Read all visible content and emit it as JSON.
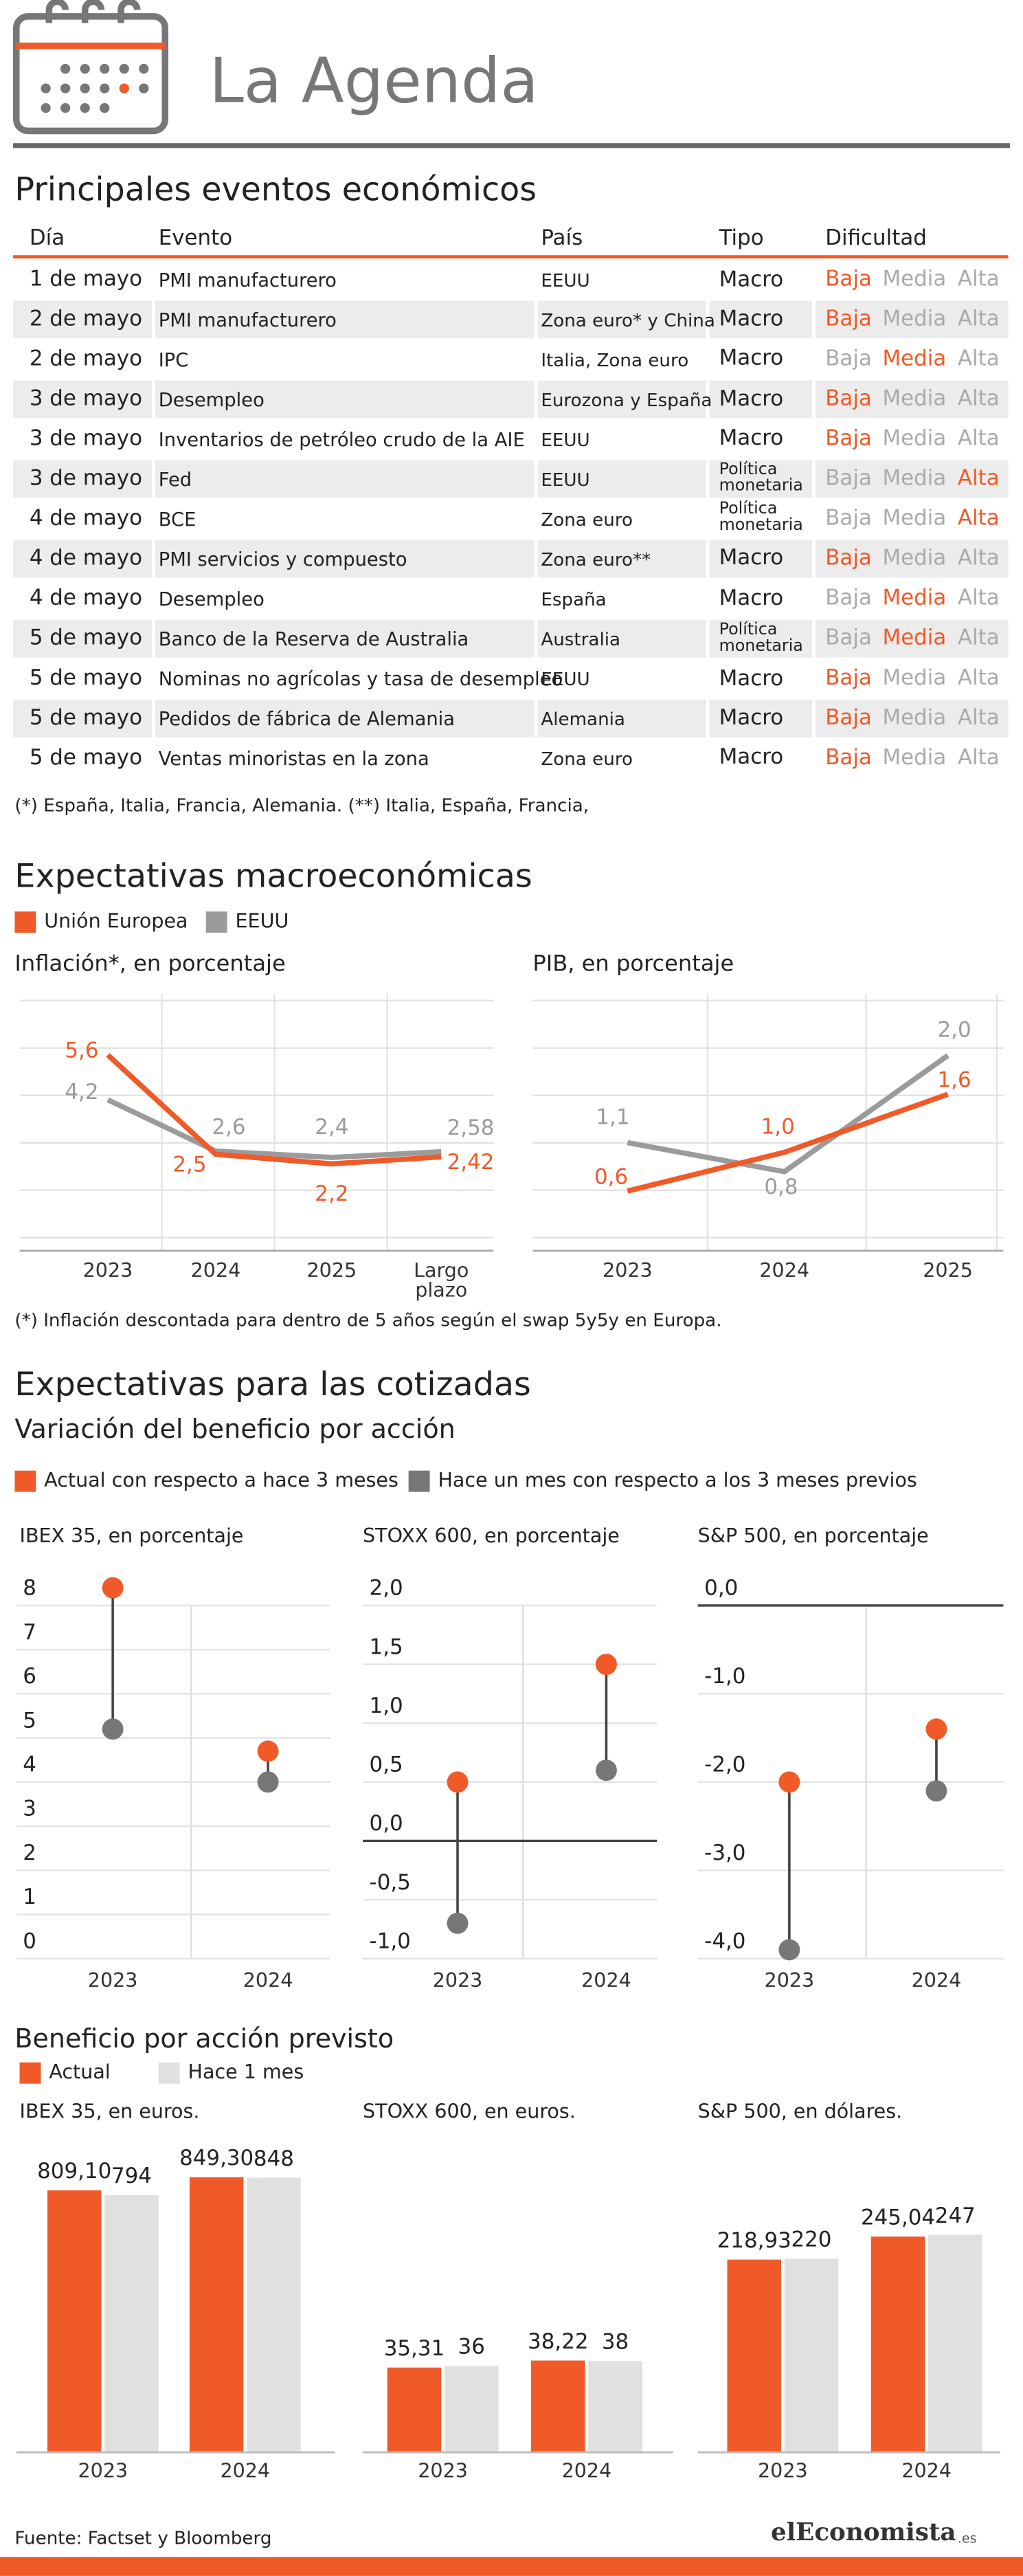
{
  "header": {
    "title": "La Agenda"
  },
  "table": {
    "title": "Principales eventos económicos",
    "columns": [
      "Día",
      "Evento",
      "País",
      "Tipo",
      "Dificultad"
    ],
    "levels": [
      "Baja",
      "Media",
      "Alta"
    ],
    "rows": [
      [
        "1 de mayo",
        "PMI manufacturero",
        "EEUU",
        "Macro",
        "Baja"
      ],
      [
        "2 de mayo",
        "PMI manufacturero",
        "Zona euro* y China",
        "Macro",
        "Baja"
      ],
      [
        "2 de mayo",
        "IPC",
        "Italia, Zona euro",
        "Macro",
        "Media"
      ],
      [
        "3 de mayo",
        "Desempleo",
        "Eurozona y España",
        "Macro",
        "Baja"
      ],
      [
        "3 de mayo",
        "Inventarios de petróleo crudo de la AIE",
        "EEUU",
        "Macro",
        "Baja"
      ],
      [
        "3 de mayo",
        "Fed",
        "EEUU",
        "Política monetaria",
        "Alta"
      ],
      [
        "4 de mayo",
        "BCE",
        "Zona euro",
        "Política monetaria",
        "Alta"
      ],
      [
        "4 de mayo",
        "PMI servicios y compuesto",
        "Zona euro**",
        "Macro",
        "Baja"
      ],
      [
        "4 de mayo",
        "Desempleo",
        "España",
        "Macro",
        "Media"
      ],
      [
        "5 de mayo",
        "Banco de la Reserva de Australia",
        "Australia",
        "Política monetaria",
        "Media"
      ],
      [
        "5 de mayo",
        "Nominas no agrícolas y tasa de desempleo",
        "EEUU",
        "Macro",
        "Baja"
      ],
      [
        "5 de mayo",
        "Pedidos de fábrica de Alemania",
        "Alemania",
        "Macro",
        "Baja"
      ],
      [
        "5 de mayo",
        "Ventas minoristas en la zona",
        "Zona euro",
        "Macro",
        "Baja"
      ]
    ],
    "note": "(*) España, Italia, Francia, Alemania. (**) Italia, España, Francia,"
  },
  "sections": {
    "macro": {
      "title": "Expectativas macroeconómicas",
      "note": "(*) Inflación descontada para dentro de 5 años según el swap 5y5y en Europa."
    },
    "stocks": {
      "title": "Expectativas para las cotizadas",
      "subtitle": "Variación del beneficio por acción"
    },
    "eps": {
      "title": "Beneficio por acción previsto"
    }
  },
  "chart_data": [
    {
      "type": "line",
      "title": "Inflación*, en porcentaje",
      "categories": [
        "2023",
        "2024",
        "2025",
        "Largo plazo"
      ],
      "ylim": [
        0,
        7
      ],
      "series": [
        {
          "name": "Unión Europea",
          "color": "#f05a28",
          "values": [
            5.6,
            2.5,
            2.2,
            2.42
          ],
          "value_labels": [
            "5,6",
            "2,5",
            "2,2",
            "2,42"
          ]
        },
        {
          "name": "EEUU",
          "color": "#9b9b9b",
          "values": [
            4.2,
            2.6,
            2.4,
            2.58
          ],
          "value_labels": [
            "4,2",
            "2,6",
            "2,4",
            "2,58"
          ]
        }
      ]
    },
    {
      "type": "line",
      "title": "PIB, en porcentaje",
      "categories": [
        "2023",
        "2024",
        "2025"
      ],
      "ylim": [
        0,
        2.5
      ],
      "series": [
        {
          "color": "#f05a28",
          "values": [
            0.6,
            1.0,
            1.6
          ],
          "value_labels": [
            "0,6",
            "1,0",
            "1,6"
          ]
        },
        {
          "color": "#9b9b9b",
          "values": [
            1.1,
            0.8,
            2.0
          ],
          "value_labels": [
            "1,1",
            "0,8",
            "2,0"
          ]
        }
      ]
    },
    {
      "type": "dot",
      "title": "IBEX 35, en porcentaje",
      "categories": [
        "2023",
        "2024"
      ],
      "ylim": [
        0,
        8
      ],
      "yticks": [
        0,
        1,
        2,
        3,
        4,
        5,
        6,
        7,
        8
      ],
      "series": [
        {
          "name": "Actual con respecto a hace 3 meses",
          "color": "#f05a28",
          "values": [
            8.4,
            4.7
          ]
        },
        {
          "name": "Hace un mes con respecto a los 3 meses previos",
          "color": "#777777",
          "values": [
            5.2,
            4.0
          ]
        }
      ]
    },
    {
      "type": "dot",
      "title": "STOXX 600, en porcentaje",
      "categories": [
        "2023",
        "2024"
      ],
      "ylim": [
        -1,
        2
      ],
      "yticks": [
        {
          "value": 2,
          "label": "2,0"
        },
        {
          "value": 1.5,
          "label": "1,5"
        },
        {
          "value": 1,
          "label": "1,0"
        },
        {
          "value": 0.5,
          "label": "0,5"
        },
        {
          "value": 0,
          "label": "0,0"
        },
        {
          "value": -0.5,
          "label": "-0,5"
        },
        {
          "value": -1,
          "label": "-1,0"
        }
      ],
      "series": [
        {
          "color": "#f05a28",
          "values": [
            0.5,
            1.5
          ]
        },
        {
          "color": "#777777",
          "values": [
            -0.7,
            0.6
          ]
        }
      ]
    },
    {
      "type": "dot",
      "title": "S&P 500, en porcentaje",
      "categories": [
        "2023",
        "2024"
      ],
      "ylim": [
        -4,
        0
      ],
      "yticks": [
        {
          "value": 0,
          "label": "0,0"
        },
        {
          "value": -1,
          "label": "-1,0"
        },
        {
          "value": -2,
          "label": "-2,0"
        },
        {
          "value": -3,
          "label": "-3,0"
        },
        {
          "value": -4,
          "label": "-4,0"
        }
      ],
      "series": [
        {
          "color": "#f05a28",
          "values": [
            -2.0,
            -1.4
          ]
        },
        {
          "color": "#777777",
          "values": [
            -3.9,
            -2.1
          ]
        }
      ]
    },
    {
      "type": "bar",
      "title": "IBEX 35, en euros.",
      "categories": [
        "2023",
        "2024"
      ],
      "ylim": [
        0,
        1060
      ],
      "series": [
        {
          "name": "Actual",
          "color": "#f05a28",
          "values": [
            809.1,
            849.3
          ],
          "value_labels": [
            "809,10",
            "849,30"
          ]
        },
        {
          "name": "Hace 1 mes",
          "color": "#e0e0de",
          "values": [
            794,
            848
          ]
        }
      ]
    },
    {
      "type": "bar",
      "title": "STOXX 600, en euros.",
      "categories": [
        "2023",
        "2024"
      ],
      "ylim": [
        0,
        143
      ],
      "series": [
        {
          "color": "#f05a28",
          "values": [
            35.31,
            38.22
          ],
          "value_labels": [
            "35,31",
            "38,22"
          ]
        },
        {
          "color": "#e0e0de",
          "values": [
            36,
            38
          ]
        }
      ]
    },
    {
      "type": "bar",
      "title": "S&P 500, en dólares.",
      "categories": [
        "2023",
        "2024"
      ],
      "ylim": [
        0,
        390
      ],
      "series": [
        {
          "color": "#f05a28",
          "values": [
            218.93,
            245.04
          ],
          "value_labels": [
            "218,93",
            "245,04"
          ]
        },
        {
          "color": "#e0e0de",
          "values": [
            220,
            247
          ]
        }
      ]
    }
  ],
  "footer": {
    "source": "Fuente: Factset y Bloomberg",
    "brand": "elEconomista",
    "brand_suffix": ".es"
  }
}
